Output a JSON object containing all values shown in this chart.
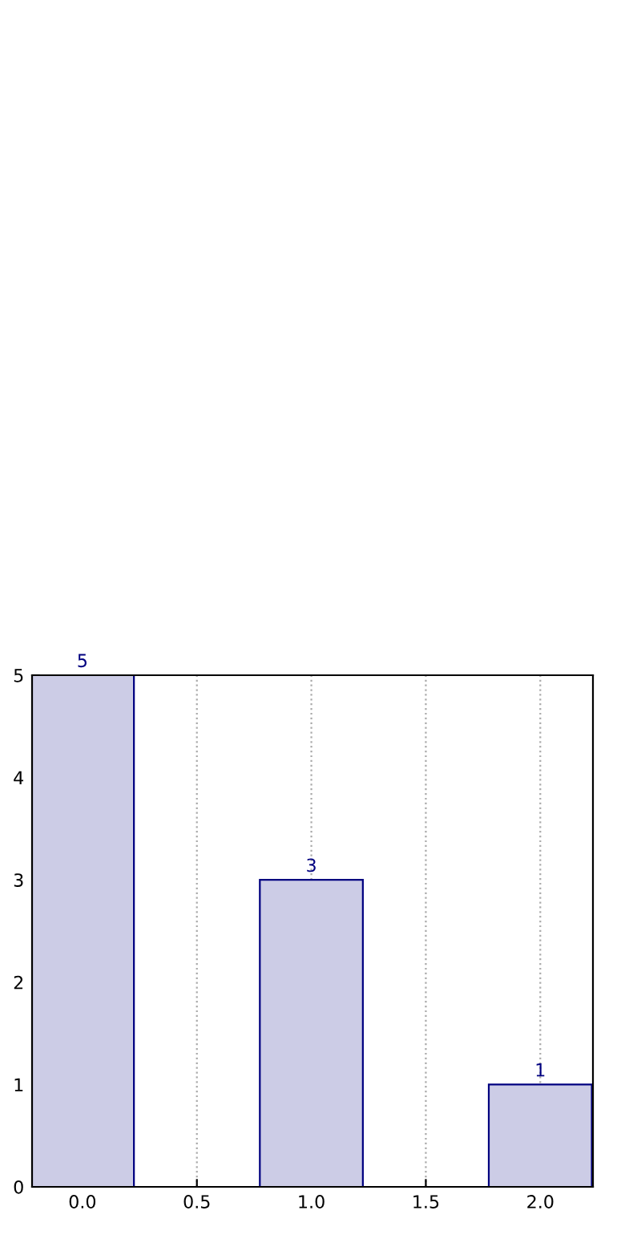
{
  "chart_data": {
    "type": "bar",
    "x": [
      0,
      1,
      2
    ],
    "values": [
      5,
      3,
      1
    ],
    "color": "#ccccE6",
    "xlim": [
      -0.22,
      2.23
    ],
    "xticks": [
      {
        "value": 0,
        "label": "0.0"
      },
      {
        "value": 0.5,
        "label": "0.5"
      },
      {
        "value": 1,
        "label": "1.0"
      },
      {
        "value": 1.5,
        "label": "1.5"
      },
      {
        "value": 2,
        "label": "2.0"
      }
    ],
    "ylim": [
      0,
      5
    ],
    "yticks": [
      0,
      1,
      2,
      3,
      4,
      5
    ],
    "grid": "x",
    "data_labels": true
  }
}
